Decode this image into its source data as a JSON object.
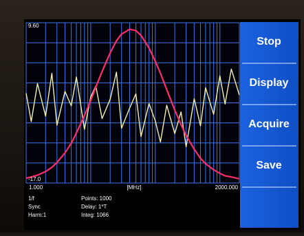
{
  "chart_data": {
    "type": "line",
    "xscale": "log",
    "xlim": [
      1,
      2000
    ],
    "ylim": [
      -17.0,
      9.6
    ],
    "xticks": [
      {
        "value": 1,
        "label": "1.000"
      },
      {
        "value": 2000,
        "label": "2000.000"
      }
    ],
    "yticks": [
      {
        "value": 9.6,
        "label": "9.60"
      },
      {
        "value": -17.0,
        "label": "-17.0"
      }
    ],
    "xlabel": "[MHz]",
    "grid": true,
    "grid_color": "#3d74ee",
    "xgrid": [
      2,
      3,
      4,
      5,
      6,
      7,
      8,
      9,
      10,
      20,
      30,
      40,
      50,
      60,
      70,
      80,
      90,
      100,
      200,
      300,
      400,
      500,
      600,
      700,
      800,
      900,
      1000
    ],
    "ygrid": [
      6.275,
      2.95,
      -0.375,
      -3.7,
      -7.025,
      -10.35,
      -13.675
    ],
    "x": [
      1,
      1.2,
      1.5,
      2,
      2.5,
      3,
      4,
      5,
      6,
      8,
      10,
      12,
      15,
      20,
      25,
      30,
      40,
      50,
      60,
      80,
      100,
      120,
      150,
      200,
      250,
      300,
      400,
      500,
      600,
      800,
      1000,
      1200,
      1500,
      2000
    ],
    "series": [
      {
        "color": "#f4efb4",
        "values": [
          -2.1,
          -6.8,
          -0.5,
          -5.9,
          1.2,
          -7.4,
          -1.8,
          -4.2,
          0.6,
          -8.1,
          -2.7,
          -0.9,
          -6.3,
          -3.1,
          1.4,
          -7.9,
          -4.6,
          -2.2,
          -9.3,
          -3.8,
          -6.7,
          -10.2,
          -4.1,
          -8.8,
          -5.2,
          -11.0,
          -3.0,
          -7.5,
          -1.2,
          -5.6,
          0.8,
          -3.9,
          1.9,
          -2.4
        ]
      },
      {
        "color": "#ff2d6e",
        "values": [
          -16.2,
          -16.0,
          -15.7,
          -15.1,
          -14.4,
          -13.6,
          -12.0,
          -10.4,
          -8.7,
          -5.8,
          -3.3,
          -1.1,
          1.5,
          4.6,
          6.6,
          7.7,
          8.5,
          8.3,
          7.5,
          5.4,
          3.2,
          1.2,
          -1.5,
          -4.9,
          -7.3,
          -9.1,
          -11.4,
          -12.9,
          -13.8,
          -14.8,
          -15.4,
          -15.8,
          -16.0,
          -16.3
        ]
      }
    ]
  },
  "buttons": [
    "Stop",
    "Display",
    "Acquire",
    "Save"
  ],
  "status": {
    "left": [
      "1/f",
      "Sync",
      "Harm:1"
    ],
    "middle": [
      "Points: 1000",
      "Delay: 1*T",
      "Integ: 1066"
    ]
  }
}
